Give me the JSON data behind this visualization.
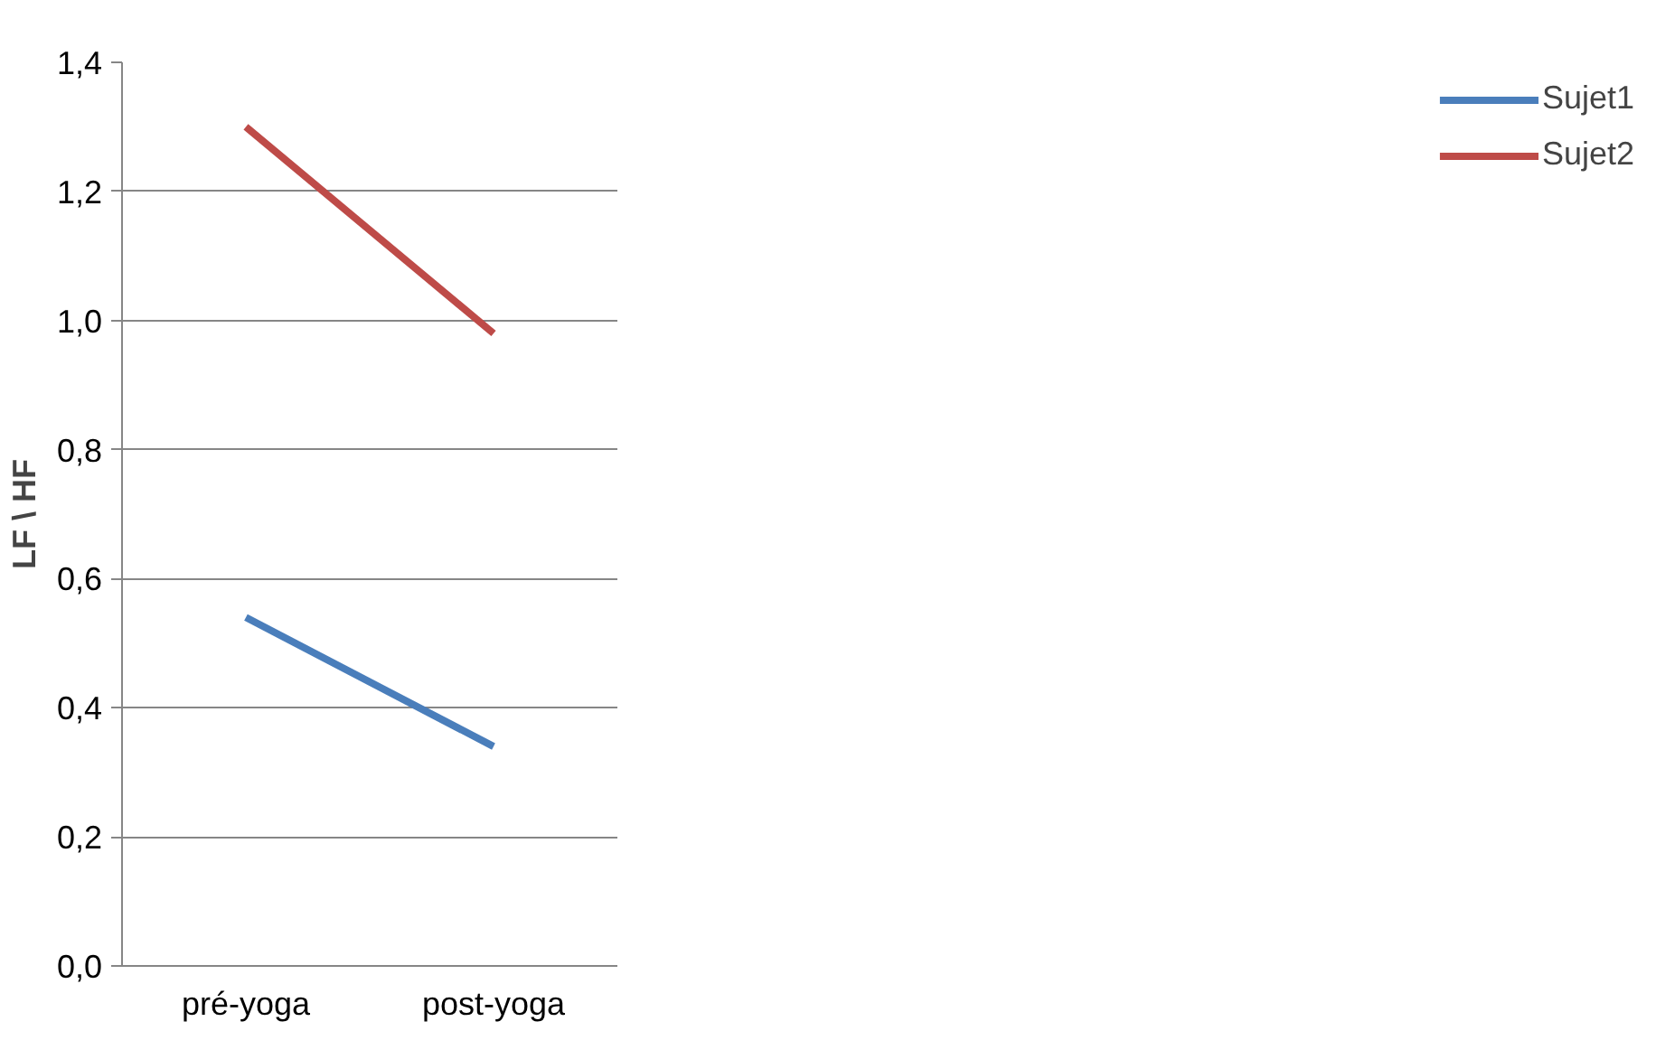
{
  "chart_data": {
    "type": "line",
    "ylabel": "LF \\ HF",
    "categories": [
      "pré-yoga",
      "post-yoga"
    ],
    "series": [
      {
        "name": "Sujet1",
        "color": "#4a7ebb",
        "values": [
          0.54,
          0.34
        ]
      },
      {
        "name": "Sujet2",
        "color": "#be4b48",
        "values": [
          1.3,
          0.98
        ]
      }
    ],
    "ylim": [
      0,
      1.4
    ],
    "yticks": [
      {
        "value": 0,
        "label": "0,0"
      },
      {
        "value": 0.2,
        "label": "0,2"
      },
      {
        "value": 0.4,
        "label": "0,4"
      },
      {
        "value": 0.6,
        "label": "0,6"
      },
      {
        "value": 0.8,
        "label": "0,8"
      },
      {
        "value": 1.0,
        "label": "1,0"
      },
      {
        "value": 1.2,
        "label": "1,2"
      },
      {
        "value": 1.4,
        "label": "1,4"
      }
    ],
    "grid": "y",
    "legend": "right",
    "marker": "none",
    "line_style": "solid"
  }
}
